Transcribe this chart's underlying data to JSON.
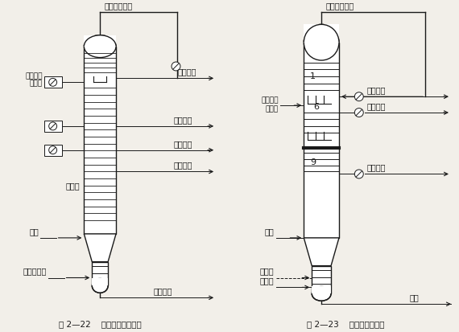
{
  "bg_color": "#f2efe9",
  "line_color": "#1a1a1a",
  "title1": "图 2—22    润滑油型减压塔图",
  "title2": "图 2—23    燃料油型减压塔",
  "fig1_vacuum": "接抽真空系统",
  "fig2_vacuum": "接抽真空系统",
  "fig1_labels_right": [
    "减压一线",
    "减压二线",
    "减压三线",
    "减压四线",
    "减压渣油"
  ],
  "fig1_labels_left": [
    "升汽管型\n抽出板",
    "破沫网",
    "进料",
    "过热水蒸气"
  ],
  "fig2_labels_right": [
    "一线蜡油",
    "二线蜡油",
    "过汽化油",
    "渣油"
  ],
  "fig2_labels_left": [
    "升汽管型\n抽出板",
    "进料",
    "水蒸气",
    "急冷油"
  ],
  "fig2_numbers": [
    "1",
    "6",
    "9"
  ]
}
